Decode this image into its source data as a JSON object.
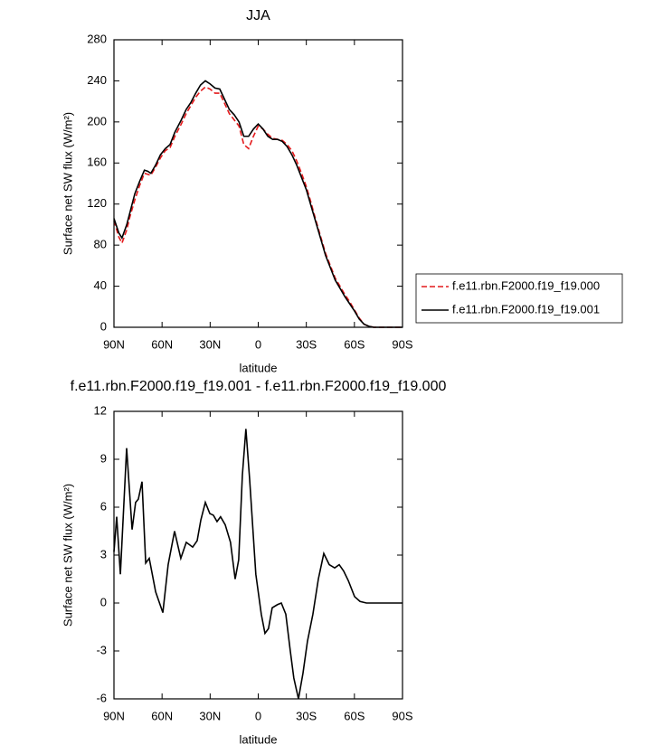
{
  "chart_data": [
    {
      "type": "line",
      "title": "JJA",
      "xlabel": "latitude",
      "ylabel": "Surface net SW flux (W/m²)",
      "xlim": [
        90,
        -90
      ],
      "ylim": [
        0,
        280
      ],
      "xticks": [
        {
          "value": 90,
          "label": "90N"
        },
        {
          "value": 60,
          "label": "60N"
        },
        {
          "value": 30,
          "label": "30N"
        },
        0,
        {
          "value": -30,
          "label": "30S"
        },
        {
          "value": -60,
          "label": "60S"
        },
        {
          "value": -90,
          "label": "90S"
        }
      ],
      "yticks": [
        0,
        40,
        80,
        120,
        160,
        200,
        240,
        280
      ],
      "legend": "right",
      "x": [
        90,
        87,
        85,
        82,
        80,
        77,
        74,
        71,
        69,
        67,
        64,
        61,
        58,
        55,
        52,
        48,
        45,
        42,
        39,
        36,
        33,
        30,
        27,
        24,
        21,
        18,
        15,
        12,
        9,
        6,
        3,
        0,
        -3,
        -6,
        -9,
        -12,
        -15,
        -18,
        -21,
        -24,
        -27,
        -30,
        -33,
        -36,
        -39,
        -42,
        -45,
        -48,
        -51,
        -54,
        -57,
        -60,
        -63,
        -66,
        -69,
        -72,
        -75,
        -80,
        -85,
        -90
      ],
      "series": [
        {
          "name": "f.e11.rbn.F2000.f19_f19.000",
          "color": "#e41a1c",
          "linestyle": "dashed",
          "values": [
            104,
            88,
            82,
            95,
            108,
            124,
            138,
            150,
            149,
            148,
            156,
            165,
            172,
            175,
            186,
            198,
            208,
            216,
            224,
            230,
            234,
            232,
            228,
            228,
            218,
            208,
            202,
            196,
            178,
            174,
            186,
            196,
            193,
            188,
            184,
            183,
            182,
            178,
            172,
            162,
            150,
            137,
            121,
            104,
            88,
            72,
            60,
            48,
            40,
            32,
            25,
            17,
            9,
            3,
            1,
            0,
            0,
            0,
            0,
            0
          ]
        },
        {
          "name": "f.e11.rbn.F2000.f19_f19.001",
          "color": "#000000",
          "linestyle": "solid",
          "values": [
            106,
            92,
            87,
            100,
            112,
            130,
            142,
            153,
            152,
            150,
            158,
            168,
            174,
            178,
            190,
            202,
            212,
            219,
            228,
            236,
            240,
            237,
            233,
            232,
            222,
            212,
            207,
            200,
            186,
            186,
            193,
            198,
            193,
            186,
            183,
            183,
            181,
            176,
            168,
            158,
            146,
            134,
            118,
            102,
            86,
            70,
            58,
            46,
            38,
            30,
            23,
            16,
            8,
            3,
            1,
            0,
            0,
            0,
            0,
            0
          ]
        }
      ]
    },
    {
      "type": "line",
      "title": "f.e11.rbn.F2000.f19_f19.001 - f.e11.rbn.F2000.f19_f19.000",
      "xlabel": "latitude",
      "ylabel": "Surface net SW flux (W/m²)",
      "xlim": [
        90,
        -90
      ],
      "ylim": [
        -6,
        12
      ],
      "xticks": [
        {
          "value": 90,
          "label": "90N"
        },
        {
          "value": 60,
          "label": "60N"
        },
        {
          "value": 30,
          "label": "30N"
        },
        0,
        {
          "value": -30,
          "label": "30S"
        },
        {
          "value": -60,
          "label": "60S"
        },
        {
          "value": -90,
          "label": "90S"
        }
      ],
      "yticks": [
        -6,
        -3,
        0,
        3,
        6,
        9,
        12
      ],
      "x": [
        90,
        88.3,
        86,
        82.1,
        78.7,
        76.5,
        74.8,
        72.5,
        70.2,
        68,
        64,
        59.5,
        56.2,
        52.2,
        48.3,
        44.9,
        40.9,
        38.1,
        35.8,
        33,
        30.2,
        28,
        25.7,
        23.5,
        20.6,
        17.3,
        14.4,
        12.2,
        9.9,
        7.7,
        5.4,
        1.5,
        -1.9,
        -4.2,
        -6.4,
        -8.7,
        -12,
        -14.4,
        -17.2,
        -20,
        -22.2,
        -25.1,
        -27.9,
        -30.7,
        -34.1,
        -37.5,
        -40.9,
        -44.3,
        -47.7,
        -50.5,
        -53.3,
        -56.2,
        -60.1,
        -63.5,
        -67.5,
        -90
      ],
      "series": [
        {
          "color": "#000000",
          "linestyle": "solid",
          "values": [
            3.2,
            5.4,
            1.8,
            9.7,
            4.6,
            6.3,
            6.5,
            7.6,
            2.5,
            2.8,
            0.7,
            -0.6,
            2.4,
            4.5,
            2.8,
            3.8,
            3.5,
            3.9,
            5.2,
            6.3,
            5.6,
            5.5,
            5.1,
            5.4,
            4.9,
            3.8,
            1.5,
            2.7,
            8,
            10.9,
            7.8,
            1.8,
            -0.7,
            -1.9,
            -1.6,
            -0.3,
            -0.1,
            0,
            -0.7,
            -3,
            -4.7,
            -6,
            -4.4,
            -2.4,
            -0.7,
            1.5,
            3.1,
            2.4,
            2.2,
            2.4,
            2,
            1.4,
            0.4,
            0.1,
            0,
            0
          ]
        }
      ]
    }
  ]
}
